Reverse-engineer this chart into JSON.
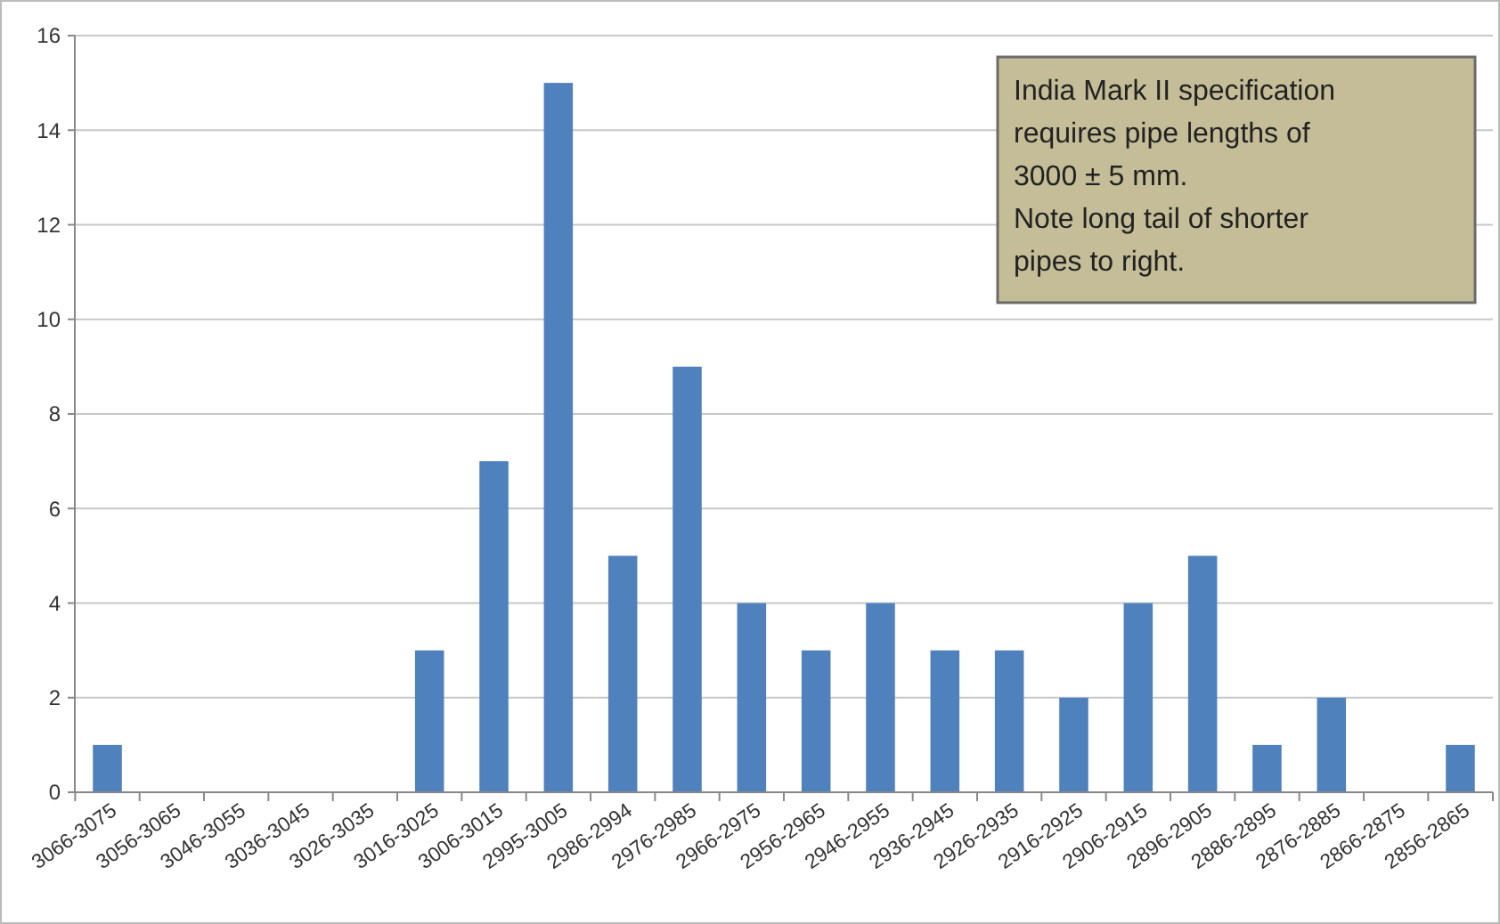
{
  "chart_data": {
    "type": "bar",
    "categories": [
      "3066-3075",
      "3056-3065",
      "3046-3055",
      "3036-3045",
      "3026-3035",
      "3016-3025",
      "3006-3015",
      "2995-3005",
      "2986-2994",
      "2976-2985",
      "2966-2975",
      "2956-2965",
      "2946-2955",
      "2936-2945",
      "2926-2935",
      "2916-2925",
      "2906-2915",
      "2896-2905",
      "2886-2895",
      "2876-2885",
      "2866-2875",
      "2856-2865"
    ],
    "values": [
      1,
      0,
      0,
      0,
      0,
      3,
      7,
      15,
      5,
      9,
      4,
      3,
      4,
      3,
      3,
      2,
      4,
      5,
      1,
      2,
      0,
      1
    ],
    "color": "#4f81bd",
    "ylim": [
      0,
      16
    ],
    "yticks": [
      0,
      2,
      4,
      6,
      8,
      10,
      12,
      14,
      16
    ],
    "grid": "y",
    "annotations": [
      "India Mark II specification\nrequires pipe lengths of\n3000 ± 5 mm.\nNote long tail of shorter\npipes to right."
    ]
  }
}
